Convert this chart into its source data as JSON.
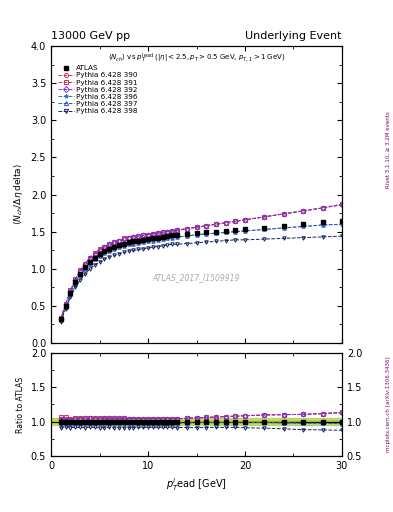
{
  "title_left": "13000 GeV pp",
  "title_right": "Underlying Event",
  "ylabel_main": "<N_{ch} / Δη delta>",
  "ylabel_ratio": "Ratio to ATLAS",
  "xlabel": "p_T^lead [GeV]",
  "watermark": "ATLAS_2017_I1509919",
  "ylim_main": [
    0.0,
    4.0
  ],
  "ylim_ratio": [
    0.5,
    2.0
  ],
  "xlim": [
    0,
    30
  ],
  "atlas_x": [
    1.0,
    1.5,
    2.0,
    2.5,
    3.0,
    3.5,
    4.0,
    4.5,
    5.0,
    5.5,
    6.0,
    6.5,
    7.0,
    7.5,
    8.0,
    8.5,
    9.0,
    9.5,
    10.0,
    10.5,
    11.0,
    11.5,
    12.0,
    12.5,
    13.0,
    14.0,
    15.0,
    16.0,
    17.0,
    18.0,
    19.0,
    20.0,
    22.0,
    24.0,
    26.0,
    28.0,
    30.0
  ],
  "atlas_y": [
    0.32,
    0.5,
    0.68,
    0.82,
    0.93,
    1.02,
    1.09,
    1.15,
    1.2,
    1.24,
    1.27,
    1.3,
    1.32,
    1.34,
    1.36,
    1.37,
    1.38,
    1.39,
    1.4,
    1.41,
    1.42,
    1.43,
    1.44,
    1.45,
    1.46,
    1.47,
    1.48,
    1.49,
    1.5,
    1.51,
    1.52,
    1.53,
    1.55,
    1.58,
    1.61,
    1.63,
    1.65
  ],
  "atlas_yerr": [
    0.015,
    0.015,
    0.015,
    0.015,
    0.015,
    0.015,
    0.015,
    0.012,
    0.012,
    0.012,
    0.012,
    0.01,
    0.01,
    0.01,
    0.01,
    0.01,
    0.01,
    0.01,
    0.01,
    0.01,
    0.01,
    0.01,
    0.01,
    0.01,
    0.01,
    0.01,
    0.01,
    0.01,
    0.01,
    0.01,
    0.012,
    0.012,
    0.015,
    0.015,
    0.018,
    0.02,
    0.022
  ],
  "mc_labels": [
    "Pythia 6.428 390",
    "Pythia 6.428 391",
    "Pythia 6.428 392",
    "Pythia 6.428 396",
    "Pythia 6.428 397",
    "Pythia 6.428 398"
  ],
  "mc_colors": [
    "#cc3377",
    "#cc3355",
    "#7733cc",
    "#3377bb",
    "#3355bb",
    "#112266"
  ],
  "mc_markers": [
    "o",
    "s",
    "D",
    "*",
    "^",
    "v"
  ],
  "mc_x": [
    1.0,
    1.5,
    2.0,
    2.5,
    3.0,
    3.5,
    4.0,
    4.5,
    5.0,
    5.5,
    6.0,
    6.5,
    7.0,
    7.5,
    8.0,
    8.5,
    9.0,
    9.5,
    10.0,
    10.5,
    11.0,
    11.5,
    12.0,
    12.5,
    13.0,
    14.0,
    15.0,
    16.0,
    17.0,
    18.0,
    19.0,
    20.0,
    22.0,
    24.0,
    26.0,
    28.0,
    30.0
  ],
  "mc390_y": [
    0.33,
    0.52,
    0.7,
    0.85,
    0.97,
    1.06,
    1.14,
    1.2,
    1.25,
    1.29,
    1.32,
    1.35,
    1.37,
    1.4,
    1.42,
    1.43,
    1.44,
    1.45,
    1.46,
    1.47,
    1.48,
    1.49,
    1.5,
    1.51,
    1.52,
    1.54,
    1.56,
    1.58,
    1.6,
    1.62,
    1.64,
    1.66,
    1.7,
    1.74,
    1.78,
    1.82,
    1.87
  ],
  "mc391_y": [
    0.34,
    0.53,
    0.71,
    0.86,
    0.98,
    1.07,
    1.15,
    1.21,
    1.26,
    1.3,
    1.33,
    1.36,
    1.38,
    1.41,
    1.42,
    1.43,
    1.44,
    1.45,
    1.46,
    1.47,
    1.48,
    1.49,
    1.5,
    1.51,
    1.52,
    1.54,
    1.56,
    1.58,
    1.6,
    1.62,
    1.64,
    1.66,
    1.7,
    1.74,
    1.78,
    1.82,
    1.87
  ],
  "mc392_y": [
    0.33,
    0.52,
    0.7,
    0.85,
    0.97,
    1.07,
    1.14,
    1.2,
    1.25,
    1.3,
    1.33,
    1.36,
    1.38,
    1.4,
    1.42,
    1.43,
    1.44,
    1.45,
    1.46,
    1.47,
    1.48,
    1.49,
    1.5,
    1.51,
    1.52,
    1.54,
    1.56,
    1.58,
    1.6,
    1.62,
    1.64,
    1.66,
    1.7,
    1.74,
    1.78,
    1.82,
    1.86
  ],
  "mc396_y": [
    0.31,
    0.49,
    0.66,
    0.8,
    0.91,
    1.0,
    1.07,
    1.13,
    1.17,
    1.21,
    1.24,
    1.27,
    1.29,
    1.31,
    1.33,
    1.34,
    1.35,
    1.36,
    1.37,
    1.38,
    1.39,
    1.4,
    1.41,
    1.42,
    1.43,
    1.44,
    1.46,
    1.47,
    1.48,
    1.49,
    1.5,
    1.51,
    1.53,
    1.55,
    1.57,
    1.59,
    1.6
  ],
  "mc397_y": [
    0.31,
    0.49,
    0.66,
    0.8,
    0.91,
    1.0,
    1.07,
    1.13,
    1.17,
    1.21,
    1.24,
    1.27,
    1.29,
    1.31,
    1.33,
    1.34,
    1.35,
    1.36,
    1.37,
    1.38,
    1.39,
    1.4,
    1.41,
    1.42,
    1.43,
    1.44,
    1.46,
    1.47,
    1.48,
    1.49,
    1.5,
    1.51,
    1.53,
    1.55,
    1.57,
    1.59,
    1.6
  ],
  "mc398_y": [
    0.29,
    0.46,
    0.62,
    0.75,
    0.85,
    0.93,
    1.0,
    1.05,
    1.09,
    1.13,
    1.16,
    1.18,
    1.2,
    1.22,
    1.24,
    1.25,
    1.26,
    1.27,
    1.28,
    1.29,
    1.3,
    1.31,
    1.32,
    1.33,
    1.33,
    1.34,
    1.35,
    1.36,
    1.37,
    1.38,
    1.39,
    1.39,
    1.4,
    1.41,
    1.42,
    1.43,
    1.44
  ],
  "background_color": "#ffffff"
}
